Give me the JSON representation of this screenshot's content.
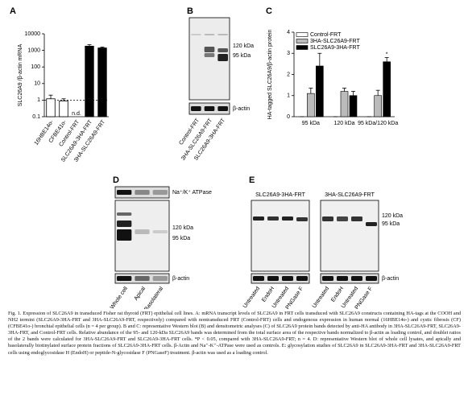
{
  "chart_data": [
    {
      "type": "bar",
      "panel_label": "A",
      "ylabel": "SLC26A9 /β-actin mRNA",
      "categories": [
        "16HBE14o-",
        "CFBE41o-",
        "Control-FRT",
        "SLC26A9-3HA-FRT",
        "3HA-SLC26A9-FRT"
      ],
      "values": [
        1.2,
        0.9,
        null,
        1800,
        1400
      ],
      "errors": [
        0.8,
        0.3,
        null,
        400,
        200
      ],
      "colors": [
        "#ffffff",
        "#ffffff",
        "#ffffff",
        "#000000",
        "#000000"
      ],
      "log_scale": true,
      "ylim": [
        0.1,
        10000
      ],
      "yticks": [
        0.1,
        1,
        10,
        100,
        1000,
        10000
      ],
      "reference_line": 1,
      "annotations": [
        {
          "text": "n.d.",
          "x": "Control-FRT"
        }
      ]
    },
    {
      "type": "grouped_bar",
      "panel_label": "C",
      "ylabel": "HA-tagged SLC26A9/β-actin protein",
      "categories": [
        "95 kDa",
        "120 kDa",
        "95 kDa/120 kDa"
      ],
      "series": [
        {
          "name": "Control-FRT",
          "color": "#ffffff",
          "values": [
            0,
            0,
            0
          ],
          "errors": [
            0,
            0,
            0
          ]
        },
        {
          "name": "3HA-SLC26A9-FRT",
          "color": "#bbbbbb",
          "values": [
            1.1,
            1.2,
            1.0
          ],
          "errors": [
            0.25,
            0.15,
            0.25
          ]
        },
        {
          "name": "SLC26A9-3HA-FRT",
          "color": "#000000",
          "values": [
            2.4,
            1.0,
            2.6
          ],
          "errors": [
            0.6,
            0.2,
            0.2
          ]
        }
      ],
      "ylim": [
        0,
        4
      ],
      "yticks": [
        0,
        1,
        2,
        3,
        4
      ],
      "legend": "top-left",
      "annotations": [
        {
          "text": "*",
          "x": "95 kDa/120 kDa",
          "series": 2
        }
      ]
    }
  ],
  "blots": [
    {
      "panel_label": "B",
      "band_labels": [
        "120 kDa",
        "95 kDa",
        "β-actin"
      ],
      "lanes": [
        "Control-FRT",
        "3HA-SLC26A9-FRT",
        "SLC26A9-3HA-FRT"
      ]
    },
    {
      "panel_label": "D",
      "band_labels": [
        "Na⁺/K⁺ ATPase",
        "120 kDa",
        "95 kDa",
        "β-actin"
      ],
      "lanes": [
        "Whole cell",
        "Apical",
        "Basolateral"
      ]
    },
    {
      "panel_label": "E",
      "headers": [
        "SLC26A9-3HA-FRT",
        "3HA-SLC26A9-FRT"
      ],
      "band_labels": [
        "120 kDa",
        "95 kDa",
        "β-actin"
      ],
      "lanes": [
        "Untreated",
        "EndoH",
        "Untreated",
        "PNGase F",
        "Untreated",
        "EndoH",
        "Untreated",
        "PNGase F"
      ]
    }
  ],
  "caption": "Fig. 1. Expression of SLC26A9 in transduced Fisher rat thyroid (FRT) epithelial cell lines. A: mRNA transcript levels of SLC26A9 in FRT cells transduced with SLC26A9 constructs containing HA-tags at the COOH and NH2 termini (SLC26A9-3HA-FRT and 3HA-SLC26A9-FRT, respectively) compared with nontransduced FRT (Control-FRT) cells and endogenous expression in human normal (16HBE14o-) and cystic fibrosis (CF) (CFBE41o-) bronchial epithelial cells (n = 4 per group). B and C: representative Western blot (B) and densitometric analyses (C) of SLC26A9 protein bands detected by anti-HA antibody in 3HA-SLC26A9-FRT, SLC26A9-3HA-FRT, and Control-FRT cells. Relative abundance of the 95- and 120-kDa SLC26A9 bands was determined from the total surface area of the respective bands normalized to β-actin as loading control, and doublet ratios of the 2 bands were calculated for 3HA-SLC26A9-FRT and SLC26A9-3HA-FRT cells. *P < 0.05, compared with 3HA-SLC26A9-FRT; n = 4. D: representative Western blot of whole cell lysates, and apically and basolaterally biotinylated surface protein fractions of SLC26A9-3HA-FRT cells. β-Actin and Na⁺-K⁺-ATPase were used as controls. E: glycosylation studies of SLC26A9 in SLC26A9-3HA-FRT and 3HA-SLC26A9-FRT cells using endoglycosidase H (EndoH) or peptide-N-glycosidase F (PNGaseF) treatment. β-actin was used as a loading control."
}
